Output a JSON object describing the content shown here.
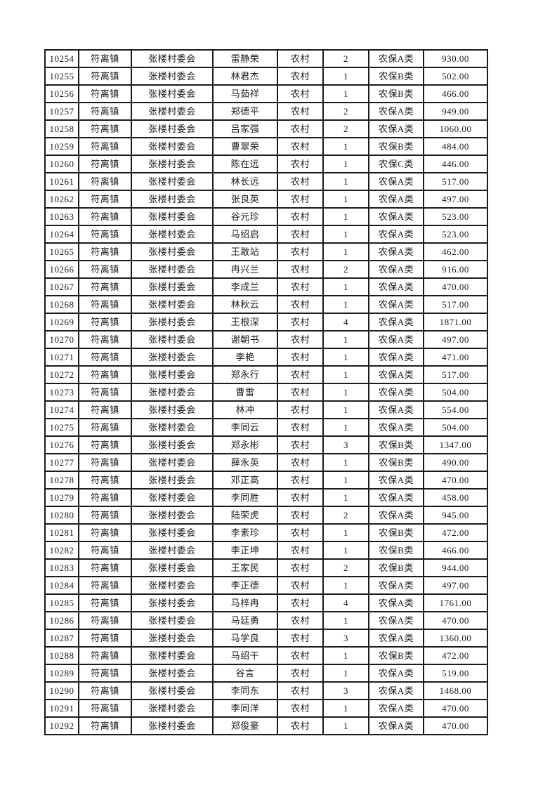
{
  "page": {
    "background_color": "#ffffff",
    "border_color": "#1b1b1b",
    "text_color": "#1a1a1a"
  },
  "table": {
    "rows": [
      [
        "10254",
        "符离镇",
        "张楼村委会",
        "雷静荣",
        "农村",
        "2",
        "农保A类",
        "930.00"
      ],
      [
        "10255",
        "符离镇",
        "张楼村委会",
        "林君杰",
        "农村",
        "1",
        "农保B类",
        "502.00"
      ],
      [
        "10256",
        "符离镇",
        "张楼村委会",
        "马茹祥",
        "农村",
        "1",
        "农保B类",
        "466.00"
      ],
      [
        "10257",
        "符离镇",
        "张楼村委会",
        "郑德平",
        "农村",
        "2",
        "农保A类",
        "949.00"
      ],
      [
        "10258",
        "符离镇",
        "张楼村委会",
        "吕家强",
        "农村",
        "2",
        "农保A类",
        "1060.00"
      ],
      [
        "10259",
        "符离镇",
        "张楼村委会",
        "曹翠荣",
        "农村",
        "1",
        "农保B类",
        "484.00"
      ],
      [
        "10260",
        "符离镇",
        "张楼村委会",
        "陈在远",
        "农村",
        "1",
        "农保C类",
        "446.00"
      ],
      [
        "10261",
        "符离镇",
        "张楼村委会",
        "林长远",
        "农村",
        "1",
        "农保A类",
        "517.00"
      ],
      [
        "10262",
        "符离镇",
        "张楼村委会",
        "张良英",
        "农村",
        "1",
        "农保A类",
        "497.00"
      ],
      [
        "10263",
        "符离镇",
        "张楼村委会",
        "谷元珍",
        "农村",
        "1",
        "农保A类",
        "523.00"
      ],
      [
        "10264",
        "符离镇",
        "张楼村委会",
        "马绍启",
        "农村",
        "1",
        "农保A类",
        "523.00"
      ],
      [
        "10265",
        "符离镇",
        "张楼村委会",
        "王敢站",
        "农村",
        "1",
        "农保A类",
        "462.00"
      ],
      [
        "10266",
        "符离镇",
        "张楼村委会",
        "冉兴兰",
        "农村",
        "2",
        "农保A类",
        "916.00"
      ],
      [
        "10267",
        "符离镇",
        "张楼村委会",
        "李成兰",
        "农村",
        "1",
        "农保A类",
        "470.00"
      ],
      [
        "10268",
        "符离镇",
        "张楼村委会",
        "林秋云",
        "农村",
        "1",
        "农保A类",
        "517.00"
      ],
      [
        "10269",
        "符离镇",
        "张楼村委会",
        "王根深",
        "农村",
        "4",
        "农保A类",
        "1871.00"
      ],
      [
        "10270",
        "符离镇",
        "张楼村委会",
        "谢朝书",
        "农村",
        "1",
        "农保A类",
        "497.00"
      ],
      [
        "10271",
        "符离镇",
        "张楼村委会",
        "李艳",
        "农村",
        "1",
        "农保A类",
        "471.00"
      ],
      [
        "10272",
        "符离镇",
        "张楼村委会",
        "郑永行",
        "农村",
        "1",
        "农保A类",
        "517.00"
      ],
      [
        "10273",
        "符离镇",
        "张楼村委会",
        "曹雷",
        "农村",
        "1",
        "农保A类",
        "504.00"
      ],
      [
        "10274",
        "符离镇",
        "张楼村委会",
        "林冲",
        "农村",
        "1",
        "农保A类",
        "554.00"
      ],
      [
        "10275",
        "符离镇",
        "张楼村委会",
        "李同云",
        "农村",
        "1",
        "农保A类",
        "504.00"
      ],
      [
        "10276",
        "符离镇",
        "张楼村委会",
        "郑永彬",
        "农村",
        "3",
        "农保B类",
        "1347.00"
      ],
      [
        "10277",
        "符离镇",
        "张楼村委会",
        "薛永英",
        "农村",
        "1",
        "农保B类",
        "490.00"
      ],
      [
        "10278",
        "符离镇",
        "张楼村委会",
        "邓正高",
        "农村",
        "1",
        "农保A类",
        "470.00"
      ],
      [
        "10279",
        "符离镇",
        "张楼村委会",
        "李同胜",
        "农村",
        "1",
        "农保A类",
        "458.00"
      ],
      [
        "10280",
        "符离镇",
        "张楼村委会",
        "陆荣虎",
        "农村",
        "2",
        "农保A类",
        "945.00"
      ],
      [
        "10281",
        "符离镇",
        "张楼村委会",
        "李素珍",
        "农村",
        "1",
        "农保B类",
        "472.00"
      ],
      [
        "10282",
        "符离镇",
        "张楼村委会",
        "李正坤",
        "农村",
        "1",
        "农保B类",
        "466.00"
      ],
      [
        "10283",
        "符离镇",
        "张楼村委会",
        "王家民",
        "农村",
        "2",
        "农保B类",
        "944.00"
      ],
      [
        "10284",
        "符离镇",
        "张楼村委会",
        "李正德",
        "农村",
        "1",
        "农保A类",
        "497.00"
      ],
      [
        "10285",
        "符离镇",
        "张楼村委会",
        "马梓冉",
        "农村",
        "4",
        "农保A类",
        "1761.00"
      ],
      [
        "10286",
        "符离镇",
        "张楼村委会",
        "马廷勇",
        "农村",
        "1",
        "农保A类",
        "470.00"
      ],
      [
        "10287",
        "符离镇",
        "张楼村委会",
        "马学良",
        "农村",
        "3",
        "农保A类",
        "1360.00"
      ],
      [
        "10288",
        "符离镇",
        "张楼村委会",
        "马绍干",
        "农村",
        "1",
        "农保B类",
        "472.00"
      ],
      [
        "10289",
        "符离镇",
        "张楼村委会",
        "谷言",
        "农村",
        "1",
        "农保A类",
        "519.00"
      ],
      [
        "10290",
        "符离镇",
        "张楼村委会",
        "李同东",
        "农村",
        "3",
        "农保A类",
        "1468.00"
      ],
      [
        "10291",
        "符离镇",
        "张楼村委会",
        "李同洋",
        "农村",
        "1",
        "农保A类",
        "470.00"
      ],
      [
        "10292",
        "符离镇",
        "张楼村委会",
        "郑俊豪",
        "农村",
        "1",
        "农保A类",
        "470.00"
      ]
    ]
  }
}
